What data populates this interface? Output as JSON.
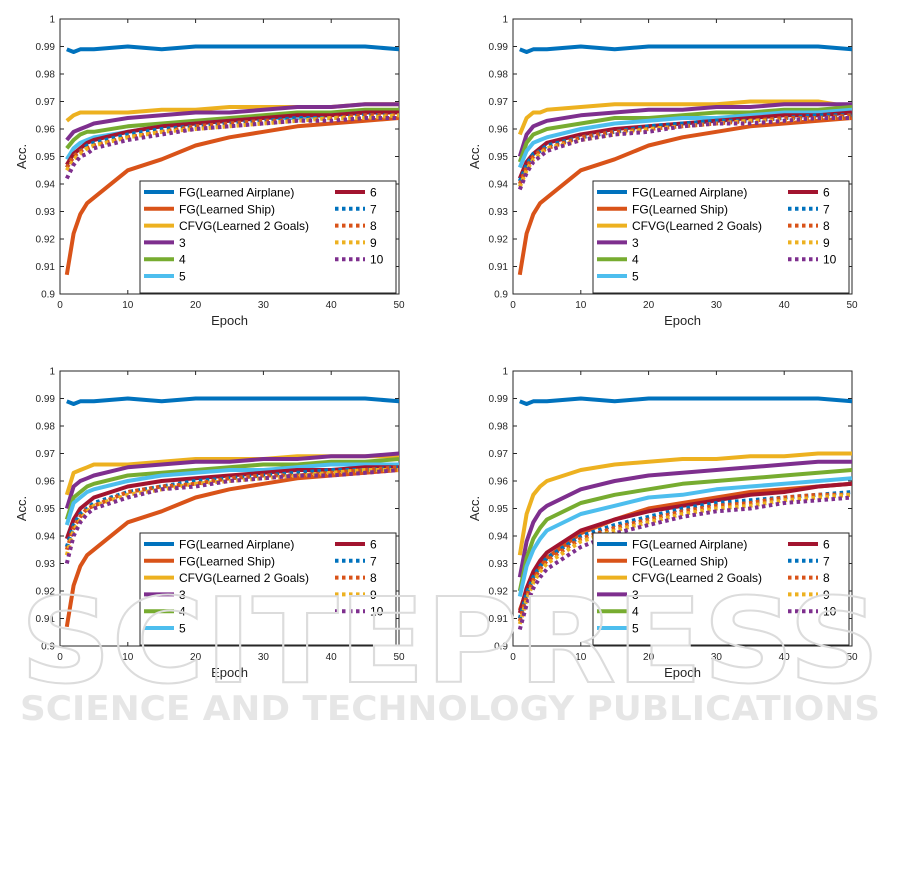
{
  "watermark": {
    "main": "SCITEPRESS",
    "sub": "SCIENCE AND TECHNOLOGY PUBLICATIONS"
  },
  "legend_labels": [
    "FG(Learned Airplane)",
    "FG(Learned Ship)",
    "CFVG(Learned 2 Goals)",
    "3",
    "4",
    "5",
    "6",
    "7",
    "8",
    "9",
    "10"
  ],
  "series_styles": [
    {
      "name": "FG(Learned Airplane)",
      "color": "#0072BD",
      "dash": false
    },
    {
      "name": "FG(Learned Ship)",
      "color": "#D95319",
      "dash": false
    },
    {
      "name": "CFVG(Learned 2 Goals)",
      "color": "#EDB120",
      "dash": false
    },
    {
      "name": "3",
      "color": "#7E2F8E",
      "dash": false
    },
    {
      "name": "4",
      "color": "#77AC30",
      "dash": false
    },
    {
      "name": "5",
      "color": "#4DBEEE",
      "dash": false
    },
    {
      "name": "6",
      "color": "#A2142F",
      "dash": false
    },
    {
      "name": "7",
      "color": "#0072BD",
      "dash": true
    },
    {
      "name": "8",
      "color": "#D95319",
      "dash": true
    },
    {
      "name": "9",
      "color": "#EDB120",
      "dash": true
    },
    {
      "name": "10",
      "color": "#7E2F8E",
      "dash": true
    }
  ],
  "chart_data": [
    {
      "type": "line",
      "xlabel": "Epoch",
      "ylabel": "Acc.",
      "xlim": [
        0,
        50
      ],
      "ylim": [
        0.9,
        1.0
      ],
      "xticks": [
        0,
        10,
        20,
        30,
        40,
        50
      ],
      "yticks": [
        "0.9",
        "0.91",
        "0.92",
        "0.93",
        "0.94",
        "0.95",
        "0.96",
        "0.97",
        "0.98",
        "0.99",
        "1"
      ],
      "legend": "bottom-right",
      "x": [
        1,
        2,
        3,
        4,
        5,
        10,
        15,
        20,
        25,
        30,
        35,
        40,
        45,
        50
      ],
      "series": [
        {
          "name": "FG(Learned Airplane)",
          "values": [
            0.989,
            0.988,
            0.989,
            0.989,
            0.989,
            0.99,
            0.989,
            0.99,
            0.99,
            0.99,
            0.99,
            0.99,
            0.99,
            0.989
          ]
        },
        {
          "name": "FG(Learned Ship)",
          "values": [
            0.907,
            0.922,
            0.929,
            0.933,
            0.935,
            0.945,
            0.949,
            0.954,
            0.957,
            0.959,
            0.961,
            0.962,
            0.963,
            0.964
          ]
        },
        {
          "name": "CFVG(Learned 2 Goals)",
          "values": [
            0.963,
            0.965,
            0.966,
            0.966,
            0.966,
            0.966,
            0.967,
            0.967,
            0.968,
            0.968,
            0.968,
            0.968,
            0.969,
            0.969
          ]
        },
        {
          "name": "3",
          "values": [
            0.956,
            0.959,
            0.96,
            0.961,
            0.962,
            0.964,
            0.965,
            0.966,
            0.966,
            0.967,
            0.968,
            0.968,
            0.969,
            0.969
          ]
        },
        {
          "name": "4",
          "values": [
            0.953,
            0.956,
            0.958,
            0.959,
            0.959,
            0.961,
            0.962,
            0.963,
            0.964,
            0.965,
            0.966,
            0.966,
            0.967,
            0.967
          ]
        },
        {
          "name": "5",
          "values": [
            0.949,
            0.953,
            0.955,
            0.956,
            0.957,
            0.959,
            0.961,
            0.962,
            0.963,
            0.964,
            0.964,
            0.965,
            0.966,
            0.966
          ]
        },
        {
          "name": "6",
          "values": [
            0.947,
            0.951,
            0.953,
            0.955,
            0.956,
            0.959,
            0.961,
            0.962,
            0.963,
            0.964,
            0.965,
            0.965,
            0.966,
            0.966
          ]
        },
        {
          "name": "7",
          "values": [
            0.946,
            0.95,
            0.952,
            0.954,
            0.955,
            0.958,
            0.96,
            0.961,
            0.962,
            0.963,
            0.964,
            0.964,
            0.965,
            0.965
          ]
        },
        {
          "name": "8",
          "values": [
            0.946,
            0.95,
            0.952,
            0.953,
            0.954,
            0.957,
            0.959,
            0.961,
            0.962,
            0.963,
            0.963,
            0.964,
            0.965,
            0.965
          ]
        },
        {
          "name": "9",
          "values": [
            0.945,
            0.949,
            0.951,
            0.953,
            0.954,
            0.957,
            0.959,
            0.96,
            0.961,
            0.962,
            0.963,
            0.964,
            0.964,
            0.965
          ]
        },
        {
          "name": "10",
          "values": [
            0.942,
            0.947,
            0.95,
            0.951,
            0.953,
            0.956,
            0.958,
            0.96,
            0.961,
            0.962,
            0.963,
            0.963,
            0.964,
            0.964
          ]
        }
      ]
    },
    {
      "type": "line",
      "xlabel": "Epoch",
      "ylabel": "Acc.",
      "xlim": [
        0,
        50
      ],
      "ylim": [
        0.9,
        1.0
      ],
      "xticks": [
        0,
        10,
        20,
        30,
        40,
        50
      ],
      "yticks": [
        "0.9",
        "0.91",
        "0.92",
        "0.93",
        "0.94",
        "0.95",
        "0.96",
        "0.97",
        "0.98",
        "0.99",
        "1"
      ],
      "legend": "bottom-right",
      "x": [
        1,
        2,
        3,
        4,
        5,
        10,
        15,
        20,
        25,
        30,
        35,
        40,
        45,
        50
      ],
      "series": [
        {
          "name": "FG(Learned Airplane)",
          "values": [
            0.989,
            0.988,
            0.989,
            0.989,
            0.989,
            0.99,
            0.989,
            0.99,
            0.99,
            0.99,
            0.99,
            0.99,
            0.99,
            0.989
          ]
        },
        {
          "name": "FG(Learned Ship)",
          "values": [
            0.907,
            0.922,
            0.929,
            0.933,
            0.935,
            0.945,
            0.949,
            0.954,
            0.957,
            0.959,
            0.961,
            0.962,
            0.963,
            0.964
          ]
        },
        {
          "name": "CFVG(Learned 2 Goals)",
          "values": [
            0.958,
            0.964,
            0.966,
            0.966,
            0.967,
            0.968,
            0.969,
            0.969,
            0.969,
            0.969,
            0.97,
            0.97,
            0.97,
            0.968
          ]
        },
        {
          "name": "3",
          "values": [
            0.95,
            0.958,
            0.961,
            0.962,
            0.963,
            0.965,
            0.966,
            0.967,
            0.967,
            0.968,
            0.968,
            0.969,
            0.969,
            0.969
          ]
        },
        {
          "name": "4",
          "values": [
            0.948,
            0.955,
            0.958,
            0.959,
            0.96,
            0.962,
            0.964,
            0.964,
            0.965,
            0.966,
            0.966,
            0.967,
            0.967,
            0.968
          ]
        },
        {
          "name": "5",
          "values": [
            0.946,
            0.952,
            0.955,
            0.956,
            0.957,
            0.96,
            0.962,
            0.963,
            0.964,
            0.964,
            0.965,
            0.966,
            0.966,
            0.967
          ]
        },
        {
          "name": "6",
          "values": [
            0.942,
            0.948,
            0.951,
            0.953,
            0.955,
            0.958,
            0.96,
            0.961,
            0.962,
            0.963,
            0.964,
            0.965,
            0.965,
            0.966
          ]
        },
        {
          "name": "7",
          "values": [
            0.941,
            0.947,
            0.951,
            0.952,
            0.954,
            0.957,
            0.959,
            0.961,
            0.962,
            0.963,
            0.963,
            0.964,
            0.965,
            0.965
          ]
        },
        {
          "name": "8",
          "values": [
            0.94,
            0.946,
            0.95,
            0.952,
            0.953,
            0.957,
            0.959,
            0.96,
            0.961,
            0.962,
            0.963,
            0.964,
            0.964,
            0.965
          ]
        },
        {
          "name": "9",
          "values": [
            0.939,
            0.945,
            0.949,
            0.951,
            0.953,
            0.956,
            0.958,
            0.96,
            0.961,
            0.962,
            0.963,
            0.963,
            0.964,
            0.964
          ]
        },
        {
          "name": "10",
          "values": [
            0.938,
            0.944,
            0.948,
            0.95,
            0.952,
            0.956,
            0.958,
            0.959,
            0.961,
            0.962,
            0.962,
            0.963,
            0.964,
            0.964
          ]
        }
      ]
    },
    {
      "type": "line",
      "xlabel": "Epoch",
      "ylabel": "Acc.",
      "xlim": [
        0,
        50
      ],
      "ylim": [
        0.9,
        1.0
      ],
      "xticks": [
        0,
        10,
        20,
        30,
        40,
        50
      ],
      "yticks": [
        "0.9",
        "0.91",
        "0.92",
        "0.93",
        "0.94",
        "0.95",
        "0.96",
        "0.97",
        "0.98",
        "0.99",
        "1"
      ],
      "legend": "bottom-right",
      "x": [
        1,
        2,
        3,
        4,
        5,
        10,
        15,
        20,
        25,
        30,
        35,
        40,
        45,
        50
      ],
      "series": [
        {
          "name": "FG(Learned Airplane)",
          "values": [
            0.989,
            0.988,
            0.989,
            0.989,
            0.989,
            0.99,
            0.989,
            0.99,
            0.99,
            0.99,
            0.99,
            0.99,
            0.99,
            0.989
          ]
        },
        {
          "name": "FG(Learned Ship)",
          "values": [
            0.907,
            0.922,
            0.929,
            0.933,
            0.935,
            0.945,
            0.949,
            0.954,
            0.957,
            0.959,
            0.961,
            0.962,
            0.963,
            0.964
          ]
        },
        {
          "name": "CFVG(Learned 2 Goals)",
          "values": [
            0.955,
            0.963,
            0.964,
            0.965,
            0.966,
            0.966,
            0.967,
            0.968,
            0.968,
            0.968,
            0.969,
            0.969,
            0.969,
            0.969
          ]
        },
        {
          "name": "3",
          "values": [
            0.95,
            0.958,
            0.96,
            0.961,
            0.962,
            0.965,
            0.966,
            0.967,
            0.967,
            0.968,
            0.968,
            0.969,
            0.969,
            0.97
          ]
        },
        {
          "name": "4",
          "values": [
            0.946,
            0.954,
            0.956,
            0.958,
            0.959,
            0.962,
            0.963,
            0.964,
            0.965,
            0.966,
            0.966,
            0.967,
            0.967,
            0.968
          ]
        },
        {
          "name": "5",
          "values": [
            0.944,
            0.952,
            0.954,
            0.956,
            0.957,
            0.96,
            0.962,
            0.963,
            0.964,
            0.964,
            0.965,
            0.966,
            0.966,
            0.966
          ]
        },
        {
          "name": "6",
          "values": [
            0.939,
            0.946,
            0.95,
            0.952,
            0.954,
            0.958,
            0.96,
            0.961,
            0.962,
            0.963,
            0.964,
            0.964,
            0.965,
            0.965
          ]
        },
        {
          "name": "7",
          "values": [
            0.936,
            0.944,
            0.948,
            0.95,
            0.952,
            0.956,
            0.958,
            0.96,
            0.961,
            0.962,
            0.963,
            0.964,
            0.964,
            0.965
          ]
        },
        {
          "name": "8",
          "values": [
            0.935,
            0.943,
            0.947,
            0.95,
            0.951,
            0.956,
            0.958,
            0.959,
            0.961,
            0.962,
            0.962,
            0.963,
            0.964,
            0.965
          ]
        },
        {
          "name": "9",
          "values": [
            0.933,
            0.942,
            0.946,
            0.949,
            0.951,
            0.955,
            0.957,
            0.959,
            0.96,
            0.961,
            0.962,
            0.963,
            0.964,
            0.964
          ]
        },
        {
          "name": "10",
          "values": [
            0.93,
            0.94,
            0.945,
            0.948,
            0.95,
            0.954,
            0.957,
            0.958,
            0.96,
            0.961,
            0.962,
            0.962,
            0.963,
            0.964
          ]
        }
      ]
    },
    {
      "type": "line",
      "xlabel": "Epoch",
      "ylabel": "Acc.",
      "xlim": [
        0,
        50
      ],
      "ylim": [
        0.9,
        1.0
      ],
      "xticks": [
        0,
        10,
        20,
        30,
        40,
        50
      ],
      "yticks": [
        "0.9",
        "0.91",
        "0.92",
        "0.93",
        "0.94",
        "0.95",
        "0.96",
        "0.97",
        "0.98",
        "0.99",
        "1"
      ],
      "legend": "bottom-right",
      "x": [
        1,
        2,
        3,
        4,
        5,
        10,
        15,
        20,
        25,
        30,
        35,
        40,
        45,
        50
      ],
      "series": [
        {
          "name": "FG(Learned Airplane)",
          "values": [
            0.989,
            0.988,
            0.989,
            0.989,
            0.989,
            0.99,
            0.989,
            0.99,
            0.99,
            0.99,
            0.99,
            0.99,
            0.99,
            0.989
          ]
        },
        {
          "name": "FG(Learned Ship)",
          "values": [
            0.913,
            0.92,
            0.925,
            0.929,
            0.932,
            0.941,
            0.946,
            0.95,
            0.952,
            0.954,
            0.956,
            0.957,
            0.958,
            0.959
          ]
        },
        {
          "name": "CFVG(Learned 2 Goals)",
          "values": [
            0.933,
            0.948,
            0.955,
            0.958,
            0.96,
            0.964,
            0.966,
            0.967,
            0.968,
            0.968,
            0.969,
            0.969,
            0.97,
            0.97
          ]
        },
        {
          "name": "3",
          "values": [
            0.925,
            0.938,
            0.945,
            0.949,
            0.951,
            0.957,
            0.96,
            0.962,
            0.963,
            0.964,
            0.965,
            0.966,
            0.967,
            0.967
          ]
        },
        {
          "name": "4",
          "values": [
            0.92,
            0.932,
            0.939,
            0.943,
            0.946,
            0.952,
            0.955,
            0.957,
            0.959,
            0.96,
            0.961,
            0.962,
            0.963,
            0.964
          ]
        },
        {
          "name": "5",
          "values": [
            0.918,
            0.929,
            0.935,
            0.939,
            0.942,
            0.948,
            0.951,
            0.954,
            0.955,
            0.957,
            0.958,
            0.959,
            0.96,
            0.961
          ]
        },
        {
          "name": "6",
          "values": [
            0.912,
            0.921,
            0.927,
            0.931,
            0.934,
            0.942,
            0.946,
            0.949,
            0.951,
            0.953,
            0.955,
            0.956,
            0.958,
            0.959
          ]
        },
        {
          "name": "7",
          "values": [
            0.91,
            0.919,
            0.925,
            0.929,
            0.932,
            0.94,
            0.944,
            0.947,
            0.95,
            0.952,
            0.953,
            0.954,
            0.955,
            0.956
          ]
        },
        {
          "name": "8",
          "values": [
            0.909,
            0.918,
            0.924,
            0.928,
            0.931,
            0.939,
            0.943,
            0.946,
            0.949,
            0.951,
            0.952,
            0.954,
            0.955,
            0.955
          ]
        },
        {
          "name": "9",
          "values": [
            0.908,
            0.917,
            0.923,
            0.927,
            0.93,
            0.938,
            0.942,
            0.945,
            0.948,
            0.95,
            0.951,
            0.953,
            0.954,
            0.955
          ]
        },
        {
          "name": "10",
          "values": [
            0.906,
            0.915,
            0.921,
            0.925,
            0.928,
            0.936,
            0.941,
            0.944,
            0.947,
            0.949,
            0.95,
            0.952,
            0.953,
            0.954
          ]
        }
      ]
    }
  ]
}
